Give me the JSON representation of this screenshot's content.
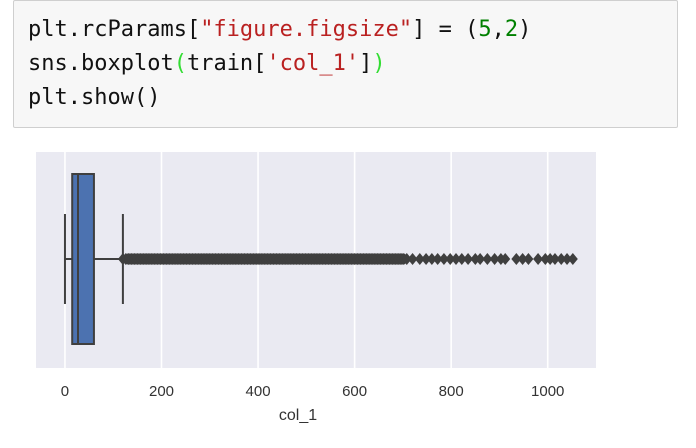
{
  "code_cell": {
    "lines": [
      [
        "plt.rcParams[",
        "\"figure.figsize\"",
        "] = (",
        "5",
        ",",
        "2",
        ")"
      ],
      [
        "sns.boxplot",
        "(",
        "train['",
        "'col_1'",
        "]",
        ")"
      ],
      [
        "plt.show()"
      ]
    ]
  },
  "chart_data": {
    "type": "boxplot",
    "xlabel": "col_1",
    "xlim": [
      -60,
      1100
    ],
    "xticks": [
      0,
      200,
      400,
      600,
      800,
      1000
    ],
    "grid": true,
    "colors": {
      "background": "#eaeaf2",
      "box": "#4c72b0",
      "line": "#3f3f3f",
      "grid": "#ffffff"
    },
    "box": {
      "whisker_low": 0,
      "q1": 15,
      "median": 27,
      "q3": 60,
      "whisker_high": 120
    },
    "outliers_dense_range": [
      120,
      710
    ],
    "outliers": [
      720,
      735,
      748,
      760,
      772,
      785,
      798,
      810,
      822,
      835,
      850,
      860,
      875,
      890,
      903,
      912,
      935,
      948,
      960,
      980,
      995,
      1005,
      1015,
      1028,
      1040,
      1052
    ]
  }
}
